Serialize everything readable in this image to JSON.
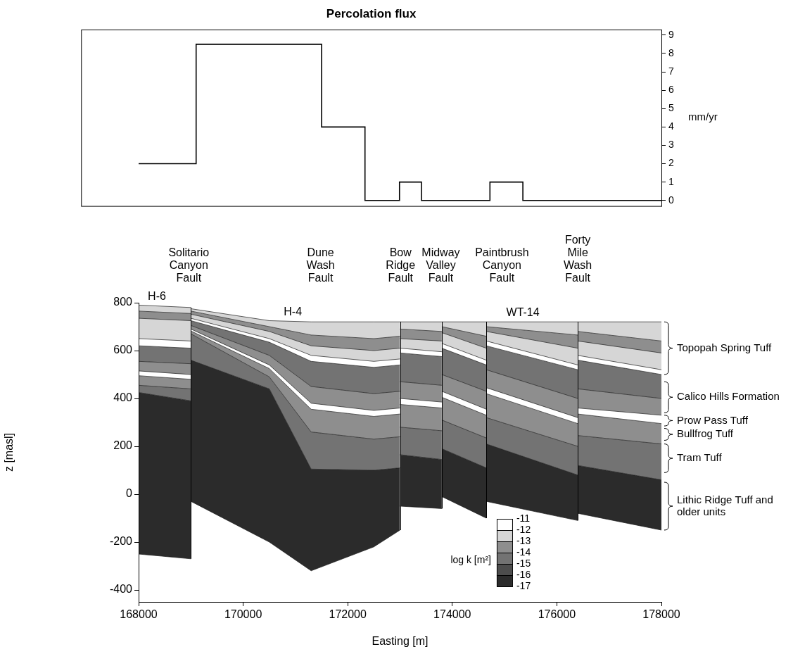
{
  "chart_data": [
    {
      "type": "step",
      "title": "Percolation flux",
      "y_label": "mm/yr",
      "bins": [
        168000,
        169100,
        171500,
        172330,
        172990,
        173410,
        174720,
        175350,
        178000
      ],
      "values": [
        2,
        8.5,
        4,
        0,
        1,
        0,
        1,
        0
      ],
      "color": "#000000",
      "xlim": [
        166900,
        178000
      ],
      "ylim": [
        -0.3,
        9.3
      ],
      "yticks": [
        0,
        1,
        2,
        3,
        4,
        5,
        6,
        7,
        8,
        9
      ],
      "tick_labels": "y",
      "grid": false
    },
    {
      "type": "cross_section",
      "x_label": "Easting [m]",
      "y_label": "z [masl]",
      "xlim": [
        168000,
        178000
      ],
      "xticks": [
        168000,
        170000,
        172000,
        174000,
        176000,
        178000
      ],
      "ylim": [
        -450,
        800
      ],
      "yticks": [
        -400,
        -200,
        0,
        200,
        400,
        600,
        800
      ],
      "grid": false,
      "blocks": [
        {
          "x": [
            168000,
            169000
          ],
          "log_k": [
            -12.5,
            -13.5,
            -12.5,
            -11.5,
            -14.5,
            -13.5,
            -11.5,
            -13.5,
            -14.5,
            -16.5
          ],
          "surfaces": [
            [
              790,
              780
            ],
            [
              765,
              755
            ],
            [
              735,
              725
            ],
            [
              650,
              640
            ],
            [
              620,
              610
            ],
            [
              555,
              545
            ],
            [
              515,
              500
            ],
            [
              495,
              480
            ],
            [
              455,
              440
            ],
            [
              425,
              390
            ],
            [
              -250,
              -270
            ]
          ]
        },
        {
          "x": [
            169000,
            170500,
            171300,
            172500,
            173000
          ],
          "log_k": [
            -12.5,
            -13.5,
            -12.5,
            -11.5,
            -14.5,
            -13.5,
            -11.5,
            -13.5,
            -14.5,
            -16.5
          ],
          "surfaces": [
            [
              775,
              725,
              720,
              720,
              720
            ],
            [
              765,
              700,
              665,
              650,
              660
            ],
            [
              752,
              680,
              620,
              600,
              610
            ],
            [
              735,
              650,
              580,
              555,
              565
            ],
            [
              725,
              635,
              555,
              530,
              540
            ],
            [
              705,
              580,
              450,
              420,
              430
            ],
            [
              690,
              540,
              380,
              350,
              360
            ],
            [
              682,
              525,
              355,
              325,
              335
            ],
            [
              670,
              490,
              260,
              230,
              240
            ],
            [
              560,
              440,
              105,
              100,
              110
            ],
            [
              -30,
              -200,
              -320,
              -220,
              -150
            ]
          ]
        },
        {
          "x": [
            173000,
            173800
          ],
          "log_k": [
            -12.5,
            -13.5,
            -12.5,
            -11.5,
            -14.5,
            -13.5,
            -11.5,
            -13.5,
            -14.5,
            -16.5
          ],
          "surfaces": [
            [
              720,
              720
            ],
            [
              690,
              680
            ],
            [
              650,
              640
            ],
            [
              610,
              595
            ],
            [
              590,
              575
            ],
            [
              470,
              455
            ],
            [
              400,
              385
            ],
            [
              375,
              360
            ],
            [
              280,
              265
            ],
            [
              165,
              145
            ],
            [
              -50,
              -60
            ]
          ]
        },
        {
          "x": [
            173800,
            174650
          ],
          "log_k": [
            -12.5,
            -13.5,
            -12.5,
            -11.5,
            -14.5,
            -13.5,
            -11.5,
            -13.5,
            -14.5,
            -16.5
          ],
          "surfaces": [
            [
              720,
              720
            ],
            [
              700,
              660
            ],
            [
              675,
              610
            ],
            [
              630,
              560
            ],
            [
              610,
              540
            ],
            [
              500,
              430
            ],
            [
              430,
              355
            ],
            [
              405,
              330
            ],
            [
              310,
              235
            ],
            [
              190,
              110
            ],
            [
              -10,
              -100
            ]
          ]
        },
        {
          "x": [
            174650,
            176400
          ],
          "log_k": [
            -12.5,
            -13.5,
            -12.5,
            -11.5,
            -14.5,
            -13.5,
            -11.5,
            -13.5,
            -14.5,
            -16.5
          ],
          "surfaces": [
            [
              720,
              720
            ],
            [
              700,
              665
            ],
            [
              680,
              610
            ],
            [
              640,
              540
            ],
            [
              620,
              520
            ],
            [
              520,
              400
            ],
            [
              445,
              320
            ],
            [
              420,
              295
            ],
            [
              320,
              200
            ],
            [
              210,
              80
            ],
            [
              -30,
              -110
            ]
          ]
        },
        {
          "x": [
            176400,
            178000
          ],
          "log_k": [
            -12.5,
            -13.5,
            -12.5,
            -11.5,
            -14.5,
            -13.5,
            -11.5,
            -13.5,
            -14.5,
            -16.5
          ],
          "surfaces": [
            [
              720,
              720
            ],
            [
              680,
              640
            ],
            [
              640,
              590
            ],
            [
              580,
              520
            ],
            [
              560,
              500
            ],
            [
              440,
              400
            ],
            [
              360,
              330
            ],
            [
              335,
              295
            ],
            [
              245,
              210
            ],
            [
              120,
              60
            ],
            [
              -80,
              -150
            ]
          ]
        }
      ],
      "colorbar": {
        "label": "log k [m²]",
        "range": [
          -17,
          -11
        ],
        "ticks": [
          -11,
          -12,
          -13,
          -14,
          -15,
          -16,
          -17
        ],
        "colors": [
          "#ffffff",
          "#d6d6d6",
          "#8e8e8e",
          "#737373",
          "#4d4d4d",
          "#2b2b2b"
        ]
      },
      "faults": [
        {
          "label": "Solitario Canyon Fault",
          "x": 168960
        },
        {
          "label": "Dune Wash Fault",
          "x": 171480
        },
        {
          "label": "Bow Ridge Fault",
          "x": 173010
        },
        {
          "label": "Midway Valley Fault",
          "x": 173780
        },
        {
          "label": "Paintbrush Canyon Fault",
          "x": 174950
        },
        {
          "label": "Forty Mile Wash Fault",
          "x": 176400
        }
      ],
      "wells": [
        {
          "label": "H-6",
          "x": 168350
        },
        {
          "label": "H-4",
          "x": 170950
        },
        {
          "label": "WT-14",
          "x": 175350
        }
      ],
      "units": [
        {
          "label": "Topopah Spring Tuff",
          "z": [
            500,
            720
          ]
        },
        {
          "label": "Calico Hills Formation",
          "z": [
            340,
            470
          ]
        },
        {
          "label": "Prow Pass Tuff",
          "z": [
            285,
            330
          ]
        },
        {
          "label": "Bullfrog Tuff",
          "z": [
            225,
            275
          ]
        },
        {
          "label": "Tram Tuff",
          "z": [
            90,
            210
          ]
        },
        {
          "label": "Lithic Ridge Tuff and older units",
          "z": [
            -150,
            50
          ]
        }
      ]
    }
  ]
}
